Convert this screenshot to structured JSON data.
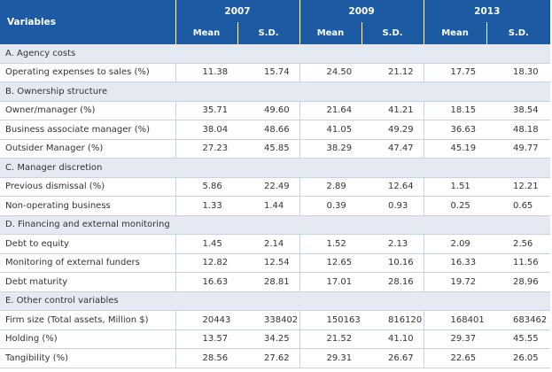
{
  "header": {
    "variables": "Variables",
    "years": [
      "2007",
      "2009",
      "2013"
    ],
    "subheaders": [
      "Mean",
      "S.D.",
      "Mean",
      "S.D.",
      "Mean",
      "S.D."
    ]
  },
  "sections": [
    {
      "title": "A. Agency costs",
      "rows": [
        {
          "label": "Operating expenses to sales (%)",
          "values": [
            "11.38",
            "15.74",
            "24.50",
            "21.12",
            "17.75",
            "18.30"
          ]
        }
      ]
    },
    {
      "title": "B. Ownership structure",
      "rows": [
        {
          "label": "Owner/manager (%)",
          "values": [
            "35.71",
            "49.60",
            "21.64",
            "41.21",
            "18.15",
            "38.54"
          ]
        },
        {
          "label": "Business associate manager (%)",
          "values": [
            "38.04",
            "48.66",
            "41.05",
            "49.29",
            "36.63",
            "48.18"
          ]
        },
        {
          "label": "Outsider Manager (%)",
          "values": [
            "27.23",
            "45.85",
            "38.29",
            "47.47",
            "45.19",
            "49.77"
          ]
        }
      ]
    },
    {
      "title": "C. Manager discretion",
      "rows": [
        {
          "label": "Previous dismissal (%)",
          "values": [
            "5.86",
            "22.49",
            "2.89",
            "12.64",
            "1.51",
            "12.21"
          ]
        },
        {
          "label": "Non-operating business",
          "values": [
            "1.33",
            "1.44",
            "0.39",
            "0.93",
            "0.25",
            "0.65"
          ]
        }
      ]
    },
    {
      "title": "D. Financing and external monitoring",
      "rows": [
        {
          "label": "Debt to equity",
          "values": [
            "1.45",
            "2.14",
            "1.52",
            "2.13",
            "2.09",
            "2.56"
          ]
        },
        {
          "label": "Monitoring of external funders",
          "values": [
            "12.82",
            "12.54",
            "12.65",
            "10.16",
            "16.33",
            "11.56"
          ]
        },
        {
          "label": "Debt maturity",
          "values": [
            "16.63",
            "28.81",
            "17.01",
            "28.16",
            "19.72",
            "28.96"
          ]
        }
      ]
    },
    {
      "title": "E. Other control variables",
      "rows": [
        {
          "label": "Firm size (Total assets, Million $)",
          "values": [
            "20443",
            "338402",
            "150163",
            "816120",
            "168401",
            "683462"
          ]
        },
        {
          "label": "Holding (%)",
          "values": [
            "13.57",
            "34.25",
            "21.52",
            "41.10",
            "29.37",
            "45.55"
          ]
        },
        {
          "label": "Tangibility (%)",
          "values": [
            "28.56",
            "27.62",
            "29.31",
            "26.67",
            "22.65",
            "26.05"
          ]
        }
      ]
    }
  ]
}
